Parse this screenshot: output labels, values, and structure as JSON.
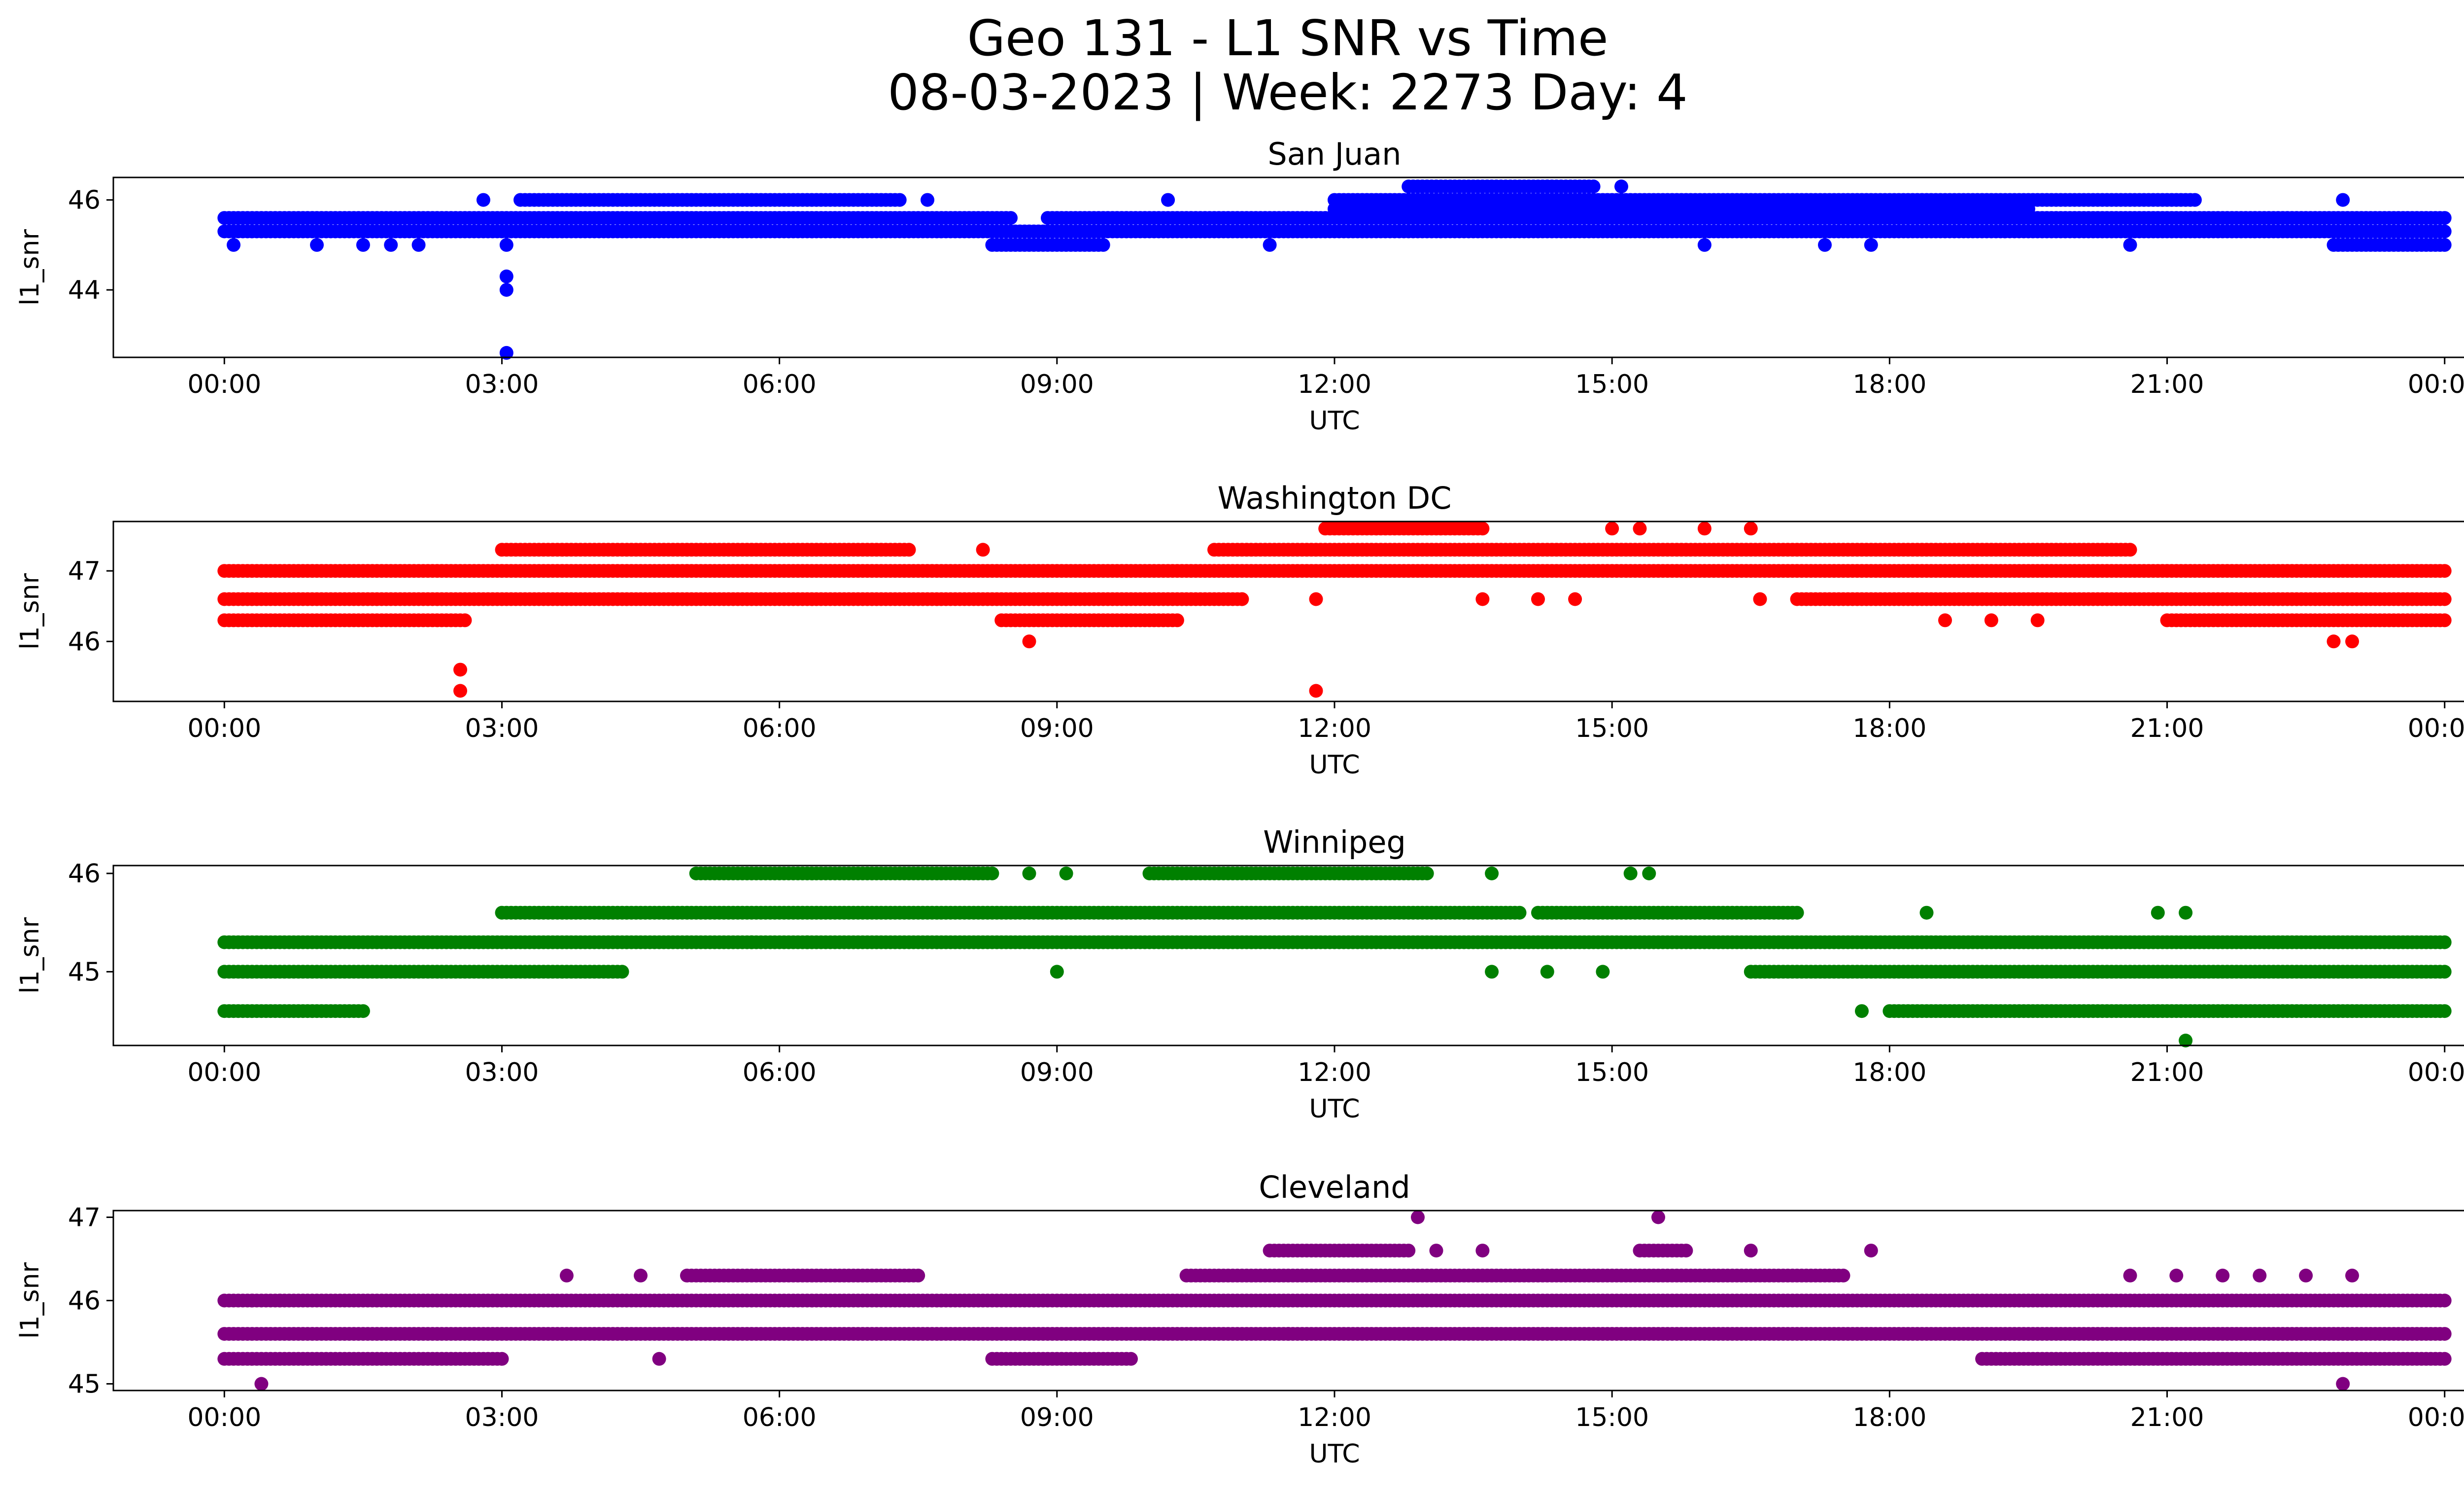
{
  "figure": {
    "title_line1": "Geo 131 - L1 SNR vs Time",
    "title_line2": "08-03-2023 | Week: 2273 Day: 4"
  },
  "chart_data": [
    {
      "type": "scatter",
      "title": "San Juan",
      "xlabel": "UTC",
      "ylabel": "l1_snr",
      "color": "#0000ff",
      "xlim_hours": [
        -1.2,
        25.2
      ],
      "ylim": [
        42.5,
        46.5
      ],
      "x_tick_labels": [
        "00:00",
        "03:00",
        "06:00",
        "09:00",
        "12:00",
        "15:00",
        "18:00",
        "21:00",
        "00:00"
      ],
      "y_ticks": [
        44,
        46
      ],
      "series": [
        {
          "values": [
            {
              "start": 0.0,
              "end": 24.0,
              "y": 45.3
            },
            {
              "start": 0.0,
              "end": 8.5,
              "y": 45.6
            },
            {
              "start": 8.9,
              "end": 24.0,
              "y": 45.6
            },
            {
              "start": 12.0,
              "end": 19.5,
              "y": 45.8
            },
            {
              "start": 3.2,
              "end": 7.3,
              "y": 46.0
            },
            {
              "start": 12.0,
              "end": 21.3,
              "y": 46.0
            },
            {
              "start": 12.8,
              "end": 14.8,
              "y": 46.3
            },
            {
              "start": 8.3,
              "end": 9.5,
              "y": 45.0
            },
            {
              "start": 22.8,
              "end": 24.0,
              "y": 45.0
            }
          ]
        },
        {
          "points": [
            [
              2.8,
              46.0
            ],
            [
              3.05,
              45.0
            ],
            [
              3.05,
              44.3
            ],
            [
              3.05,
              44.0
            ],
            [
              3.05,
              42.6
            ],
            [
              0.1,
              45.0
            ],
            [
              1.0,
              45.0
            ],
            [
              1.5,
              45.0
            ],
            [
              1.8,
              45.0
            ],
            [
              2.1,
              45.0
            ],
            [
              7.6,
              46.0
            ],
            [
              10.2,
              46.0
            ],
            [
              11.3,
              45.0
            ],
            [
              14.3,
              46.3
            ],
            [
              14.5,
              45.3
            ],
            [
              15.1,
              46.3
            ],
            [
              16.0,
              45.0
            ],
            [
              17.3,
              45.0
            ],
            [
              17.8,
              45.0
            ],
            [
              20.6,
              45.0
            ],
            [
              22.9,
              46.0
            ]
          ]
        }
      ]
    },
    {
      "type": "scatter",
      "title": "Washington DC",
      "xlabel": "UTC",
      "ylabel": "l1_snr",
      "color": "#ff0000",
      "xlim_hours": [
        -1.2,
        25.2
      ],
      "ylim": [
        45.15,
        47.7
      ],
      "x_tick_labels": [
        "00:00",
        "03:00",
        "06:00",
        "09:00",
        "12:00",
        "15:00",
        "18:00",
        "21:00",
        "00:00"
      ],
      "y_ticks": [
        46,
        47
      ],
      "series": [
        {
          "values": [
            {
              "start": 0.0,
              "end": 24.0,
              "y": 47.0
            },
            {
              "start": 0.0,
              "end": 11.0,
              "y": 46.6
            },
            {
              "start": 17.0,
              "end": 24.0,
              "y": 46.6
            },
            {
              "start": 0.0,
              "end": 2.6,
              "y": 46.3
            },
            {
              "start": 8.4,
              "end": 10.3,
              "y": 46.3
            },
            {
              "start": 21.0,
              "end": 24.0,
              "y": 46.3
            },
            {
              "start": 3.0,
              "end": 7.4,
              "y": 47.3
            },
            {
              "start": 10.7,
              "end": 20.6,
              "y": 47.3
            },
            {
              "start": 11.9,
              "end": 13.6,
              "y": 47.6
            }
          ]
        },
        {
          "points": [
            [
              2.55,
              45.6
            ],
            [
              2.55,
              45.3
            ],
            [
              8.7,
              46.0
            ],
            [
              11.8,
              45.3
            ],
            [
              11.8,
              46.6
            ],
            [
              11.0,
              46.6
            ],
            [
              13.6,
              46.6
            ],
            [
              14.2,
              46.6
            ],
            [
              14.6,
              46.6
            ],
            [
              15.0,
              47.6
            ],
            [
              15.3,
              47.6
            ],
            [
              16.0,
              47.6
            ],
            [
              16.5,
              47.6
            ],
            [
              16.6,
              46.6
            ],
            [
              8.2,
              47.3
            ],
            [
              18.6,
              46.3
            ],
            [
              19.1,
              46.3
            ],
            [
              19.6,
              46.3
            ],
            [
              22.8,
              46.0
            ],
            [
              23.0,
              46.0
            ]
          ]
        }
      ]
    },
    {
      "type": "scatter",
      "title": "Winnipeg",
      "xlabel": "UTC",
      "ylabel": "l1_snr",
      "color": "#008000",
      "xlim_hours": [
        -1.2,
        25.2
      ],
      "ylim": [
        44.25,
        46.08
      ],
      "x_tick_labels": [
        "00:00",
        "03:00",
        "06:00",
        "09:00",
        "12:00",
        "15:00",
        "18:00",
        "21:00",
        "00:00"
      ],
      "y_ticks": [
        45,
        46
      ],
      "series": [
        {
          "values": [
            {
              "start": 0.0,
              "end": 24.0,
              "y": 45.3
            },
            {
              "start": 0.0,
              "end": 4.3,
              "y": 45.0
            },
            {
              "start": 16.5,
              "end": 24.0,
              "y": 45.0
            },
            {
              "start": 0.0,
              "end": 1.5,
              "y": 44.6
            },
            {
              "start": 18.0,
              "end": 24.0,
              "y": 44.6
            },
            {
              "start": 3.0,
              "end": 14.0,
              "y": 45.6
            },
            {
              "start": 14.2,
              "end": 17.0,
              "y": 45.6
            },
            {
              "start": 5.1,
              "end": 8.3,
              "y": 46.0
            },
            {
              "start": 10.0,
              "end": 13.0,
              "y": 46.0
            }
          ]
        },
        {
          "points": [
            [
              8.7,
              46.0
            ],
            [
              9.0,
              45.0
            ],
            [
              9.1,
              46.0
            ],
            [
              13.7,
              46.0
            ],
            [
              13.7,
              45.0
            ],
            [
              14.3,
              45.0
            ],
            [
              14.9,
              45.0
            ],
            [
              15.2,
              46.0
            ],
            [
              15.4,
              46.0
            ],
            [
              18.4,
              45.6
            ],
            [
              20.9,
              45.6
            ],
            [
              21.2,
              45.6
            ],
            [
              21.2,
              44.3
            ],
            [
              17.7,
              44.6
            ],
            [
              5.7,
              45.3
            ],
            [
              6.3,
              45.3
            ]
          ]
        }
      ]
    },
    {
      "type": "scatter",
      "title": "Cleveland",
      "xlabel": "UTC",
      "ylabel": "l1_snr",
      "color": "#800080",
      "xlim_hours": [
        -1.2,
        25.2
      ],
      "ylim": [
        44.92,
        47.08
      ],
      "x_tick_labels": [
        "00:00",
        "03:00",
        "06:00",
        "09:00",
        "12:00",
        "15:00",
        "18:00",
        "21:00",
        "00:00"
      ],
      "y_ticks": [
        45,
        46,
        47
      ],
      "series": [
        {
          "values": [
            {
              "start": 0.0,
              "end": 24.0,
              "y": 46.0
            },
            {
              "start": 0.0,
              "end": 24.0,
              "y": 45.6
            },
            {
              "start": 0.0,
              "end": 3.0,
              "y": 45.3
            },
            {
              "start": 8.3,
              "end": 9.8,
              "y": 45.3
            },
            {
              "start": 19.0,
              "end": 24.0,
              "y": 45.3
            },
            {
              "start": 5.0,
              "end": 7.5,
              "y": 46.3
            },
            {
              "start": 10.4,
              "end": 17.5,
              "y": 46.3
            },
            {
              "start": 11.3,
              "end": 12.8,
              "y": 46.6
            },
            {
              "start": 15.3,
              "end": 15.8,
              "y": 46.6
            }
          ]
        },
        {
          "points": [
            [
              0.4,
              45.0
            ],
            [
              12.9,
              47.0
            ],
            [
              15.5,
              47.0
            ],
            [
              13.1,
              46.6
            ],
            [
              13.6,
              46.6
            ],
            [
              16.5,
              46.6
            ],
            [
              17.8,
              46.6
            ],
            [
              22.9,
              45.0
            ],
            [
              3.7,
              46.3
            ],
            [
              4.7,
              45.3
            ],
            [
              4.5,
              46.3
            ],
            [
              0.3,
              46.0
            ],
            [
              0.6,
              46.0
            ],
            [
              20.6,
              46.3
            ],
            [
              21.1,
              46.3
            ],
            [
              21.6,
              46.3
            ],
            [
              22.0,
              46.3
            ],
            [
              22.5,
              46.3
            ],
            [
              23.0,
              46.3
            ],
            [
              11.5,
              45.6
            ]
          ]
        }
      ]
    }
  ]
}
